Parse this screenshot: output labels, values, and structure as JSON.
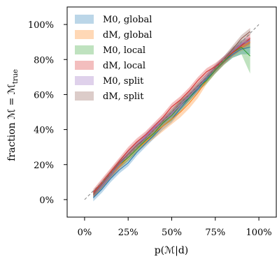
{
  "chart_data": {
    "type": "line",
    "title": "",
    "xlabel": "p(ℳ|d)",
    "ylabel": "fraction ℳ = ℳ",
    "ylabel_subscript": "true",
    "xlim": [
      -0.1,
      1.1
    ],
    "ylim": [
      -0.1,
      1.1
    ],
    "xticks": [
      0,
      0.25,
      0.5,
      0.75,
      1.0
    ],
    "xtick_labels": [
      "0%",
      "25%",
      "50%",
      "75%",
      "100%"
    ],
    "yticks": [
      0,
      0.2,
      0.4,
      0.6,
      0.8,
      1.0
    ],
    "ytick_labels": [
      "0%",
      "20%",
      "40%",
      "60%",
      "80%",
      "100%"
    ],
    "grid": false,
    "legend_position": "top-left",
    "reference_line": {
      "x": [
        0,
        1
      ],
      "y": [
        0,
        1
      ],
      "style": "dashed",
      "color": "#808080"
    },
    "series": [
      {
        "name": "M0, global",
        "color": "#1f77b4",
        "x": [
          0.05,
          0.1,
          0.15,
          0.2,
          0.25,
          0.3,
          0.35,
          0.4,
          0.45,
          0.5,
          0.55,
          0.6,
          0.65,
          0.7,
          0.75,
          0.8,
          0.85,
          0.9,
          0.95
        ],
        "y": [
          0.01,
          0.06,
          0.12,
          0.17,
          0.21,
          0.27,
          0.32,
          0.37,
          0.42,
          0.46,
          0.52,
          0.58,
          0.63,
          0.69,
          0.74,
          0.79,
          0.83,
          0.86,
          0.87
        ],
        "band": [
          0.02,
          0.02,
          0.02,
          0.02,
          0.02,
          0.02,
          0.02,
          0.02,
          0.02,
          0.02,
          0.02,
          0.02,
          0.02,
          0.02,
          0.02,
          0.02,
          0.02,
          0.03,
          0.04
        ]
      },
      {
        "name": "dM, global",
        "color": "#ff7f0e",
        "x": [
          0.05,
          0.1,
          0.15,
          0.2,
          0.25,
          0.3,
          0.35,
          0.4,
          0.45,
          0.5,
          0.55,
          0.6,
          0.65,
          0.7,
          0.75,
          0.8,
          0.85,
          0.9,
          0.95
        ],
        "y": [
          0.03,
          0.08,
          0.14,
          0.19,
          0.24,
          0.29,
          0.33,
          0.38,
          0.42,
          0.46,
          0.5,
          0.55,
          0.61,
          0.68,
          0.74,
          0.79,
          0.84,
          0.87,
          0.9
        ],
        "band": [
          0.02,
          0.02,
          0.02,
          0.02,
          0.02,
          0.02,
          0.02,
          0.03,
          0.03,
          0.03,
          0.03,
          0.03,
          0.03,
          0.02,
          0.02,
          0.02,
          0.02,
          0.02,
          0.03
        ]
      },
      {
        "name": "M0, local",
        "color": "#2ca02c",
        "x": [
          0.05,
          0.1,
          0.15,
          0.2,
          0.25,
          0.3,
          0.35,
          0.4,
          0.45,
          0.5,
          0.55,
          0.6,
          0.65,
          0.7,
          0.75,
          0.8,
          0.85,
          0.9,
          0.95
        ],
        "y": [
          0.03,
          0.08,
          0.14,
          0.2,
          0.24,
          0.29,
          0.34,
          0.38,
          0.44,
          0.48,
          0.54,
          0.58,
          0.64,
          0.68,
          0.74,
          0.79,
          0.84,
          0.87,
          0.82
        ],
        "band": [
          0.02,
          0.02,
          0.02,
          0.02,
          0.02,
          0.02,
          0.02,
          0.02,
          0.02,
          0.03,
          0.03,
          0.02,
          0.02,
          0.02,
          0.02,
          0.02,
          0.03,
          0.04,
          0.1
        ]
      },
      {
        "name": "dM, local",
        "color": "#d62728",
        "x": [
          0.05,
          0.1,
          0.15,
          0.2,
          0.25,
          0.3,
          0.35,
          0.4,
          0.45,
          0.5,
          0.55,
          0.6,
          0.65,
          0.7,
          0.75,
          0.8,
          0.85,
          0.9,
          0.95
        ],
        "y": [
          0.04,
          0.1,
          0.16,
          0.22,
          0.28,
          0.33,
          0.37,
          0.42,
          0.47,
          0.53,
          0.57,
          0.62,
          0.68,
          0.73,
          0.76,
          0.8,
          0.84,
          0.88,
          0.92
        ],
        "band": [
          0.02,
          0.02,
          0.02,
          0.02,
          0.02,
          0.02,
          0.02,
          0.02,
          0.02,
          0.02,
          0.02,
          0.02,
          0.02,
          0.02,
          0.02,
          0.02,
          0.02,
          0.02,
          0.03
        ]
      },
      {
        "name": "M0, split",
        "color": "#9467bd",
        "x": [
          0.05,
          0.1,
          0.15,
          0.2,
          0.25,
          0.3,
          0.35,
          0.4,
          0.45,
          0.5,
          0.55,
          0.6,
          0.65,
          0.7,
          0.75,
          0.8,
          0.85,
          0.9,
          0.95
        ],
        "y": [
          0.03,
          0.08,
          0.14,
          0.2,
          0.26,
          0.31,
          0.36,
          0.41,
          0.45,
          0.49,
          0.54,
          0.59,
          0.64,
          0.7,
          0.75,
          0.8,
          0.85,
          0.89,
          0.91
        ],
        "band": [
          0.02,
          0.02,
          0.02,
          0.02,
          0.02,
          0.02,
          0.02,
          0.02,
          0.02,
          0.02,
          0.02,
          0.02,
          0.02,
          0.02,
          0.02,
          0.02,
          0.02,
          0.02,
          0.02
        ]
      },
      {
        "name": "dM, split",
        "color": "#8c564b",
        "x": [
          0.05,
          0.1,
          0.15,
          0.2,
          0.25,
          0.3,
          0.35,
          0.4,
          0.45,
          0.5,
          0.55,
          0.6,
          0.65,
          0.7,
          0.75,
          0.8,
          0.85,
          0.9,
          0.95
        ],
        "y": [
          0.03,
          0.09,
          0.15,
          0.21,
          0.26,
          0.31,
          0.35,
          0.4,
          0.45,
          0.5,
          0.55,
          0.6,
          0.65,
          0.7,
          0.75,
          0.8,
          0.86,
          0.92,
          0.96
        ],
        "band": [
          0.02,
          0.02,
          0.02,
          0.02,
          0.02,
          0.02,
          0.02,
          0.02,
          0.02,
          0.02,
          0.02,
          0.02,
          0.02,
          0.02,
          0.02,
          0.02,
          0.02,
          0.02,
          0.02
        ]
      }
    ]
  }
}
